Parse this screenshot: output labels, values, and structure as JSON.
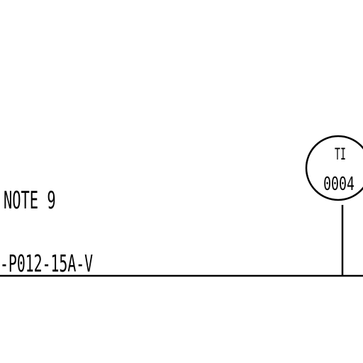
{
  "annotations": {
    "note": "NOTE 9",
    "line_number": "-P012-15A-V"
  },
  "instrument": {
    "tag_letters": "TI",
    "tag_number": "0004"
  },
  "colors": {
    "background": "#ffffff",
    "linework": "#000000"
  }
}
